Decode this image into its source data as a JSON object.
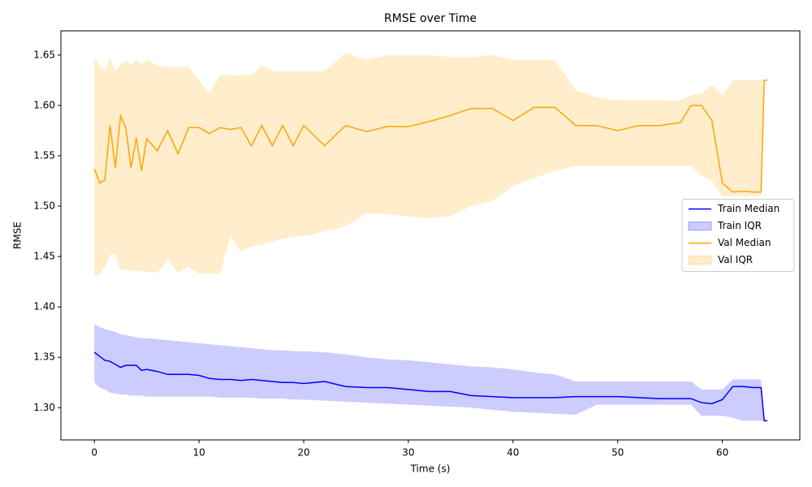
{
  "chart_data": {
    "type": "line",
    "title": "RMSE over Time",
    "x_label": "Time (s)",
    "y_label": "RMSE",
    "x": [
      0,
      0.5,
      1,
      1.5,
      2,
      2.5,
      3,
      3.5,
      4,
      4.5,
      5,
      6,
      7,
      8,
      9,
      10,
      11,
      12,
      13,
      14,
      15,
      16,
      17,
      18,
      19,
      20,
      22,
      24,
      26,
      28,
      30,
      32,
      34,
      36,
      38,
      40,
      42,
      44,
      46,
      48,
      50,
      52,
      54,
      56,
      57,
      58,
      59,
      60,
      61,
      62,
      63,
      63.7,
      64,
      64.3
    ],
    "series": [
      {
        "name": "Train Median",
        "color": "#0000ff",
        "values": [
          1.355,
          1.351,
          1.347,
          1.346,
          1.343,
          1.34,
          1.342,
          1.342,
          1.342,
          1.337,
          1.338,
          1.336,
          1.333,
          1.333,
          1.333,
          1.332,
          1.329,
          1.328,
          1.328,
          1.327,
          1.328,
          1.327,
          1.326,
          1.325,
          1.325,
          1.324,
          1.326,
          1.321,
          1.32,
          1.32,
          1.318,
          1.316,
          1.316,
          1.312,
          1.311,
          1.31,
          1.31,
          1.31,
          1.311,
          1.311,
          1.311,
          1.31,
          1.309,
          1.309,
          1.309,
          1.305,
          1.304,
          1.308,
          1.321,
          1.321,
          1.32,
          1.32,
          1.287,
          1.287
        ]
      },
      {
        "name": "Train IQR",
        "color": "#0000ff",
        "low": [
          1.325,
          1.32,
          1.318,
          1.315,
          1.314,
          1.313,
          1.313,
          1.312,
          1.312,
          1.312,
          1.311,
          1.311,
          1.311,
          1.311,
          1.311,
          1.311,
          1.311,
          1.31,
          1.31,
          1.31,
          1.31,
          1.309,
          1.309,
          1.309,
          1.308,
          1.308,
          1.307,
          1.306,
          1.305,
          1.304,
          1.303,
          1.302,
          1.301,
          1.3,
          1.298,
          1.296,
          1.295,
          1.294,
          1.293,
          1.303,
          1.303,
          1.303,
          1.303,
          1.303,
          1.303,
          1.292,
          1.292,
          1.292,
          1.29,
          1.287,
          1.287,
          1.287,
          1.287,
          1.287
        ],
        "high": [
          1.383,
          1.38,
          1.378,
          1.377,
          1.375,
          1.373,
          1.372,
          1.371,
          1.37,
          1.369,
          1.369,
          1.368,
          1.367,
          1.366,
          1.365,
          1.364,
          1.363,
          1.362,
          1.361,
          1.36,
          1.359,
          1.358,
          1.357,
          1.357,
          1.356,
          1.356,
          1.355,
          1.353,
          1.35,
          1.348,
          1.347,
          1.345,
          1.343,
          1.341,
          1.34,
          1.338,
          1.335,
          1.333,
          1.326,
          1.326,
          1.326,
          1.326,
          1.326,
          1.326,
          1.326,
          1.318,
          1.318,
          1.318,
          1.328,
          1.328,
          1.328,
          1.328,
          1.287,
          1.287
        ]
      },
      {
        "name": "Val Median",
        "color": "#ffa500",
        "values": [
          1.537,
          1.523,
          1.526,
          1.58,
          1.538,
          1.59,
          1.578,
          1.538,
          1.568,
          1.535,
          1.567,
          1.555,
          1.575,
          1.552,
          1.578,
          1.578,
          1.572,
          1.578,
          1.576,
          1.578,
          1.56,
          1.58,
          1.56,
          1.58,
          1.56,
          1.58,
          1.56,
          1.58,
          1.574,
          1.579,
          1.579,
          1.584,
          1.59,
          1.597,
          1.597,
          1.585,
          1.598,
          1.598,
          1.58,
          1.58,
          1.575,
          1.58,
          1.58,
          1.583,
          1.6,
          1.6,
          1.585,
          1.523,
          1.514,
          1.515,
          1.514,
          1.514,
          1.625,
          1.625
        ]
      },
      {
        "name": "Val IQR",
        "color": "#ffa500",
        "low": [
          1.43,
          1.432,
          1.44,
          1.452,
          1.452,
          1.437,
          1.437,
          1.436,
          1.436,
          1.435,
          1.435,
          1.434,
          1.446,
          1.434,
          1.44,
          1.433,
          1.433,
          1.433,
          1.47,
          1.455,
          1.46,
          1.462,
          1.465,
          1.468,
          1.47,
          1.47,
          1.475,
          1.48,
          1.493,
          1.492,
          1.49,
          1.488,
          1.49,
          1.5,
          1.505,
          1.52,
          1.528,
          1.535,
          1.54,
          1.54,
          1.54,
          1.54,
          1.54,
          1.54,
          1.54,
          1.53,
          1.525,
          1.51,
          1.51,
          1.51,
          1.51,
          1.51,
          1.625,
          1.625
        ],
        "high": [
          1.648,
          1.64,
          1.635,
          1.647,
          1.635,
          1.64,
          1.645,
          1.64,
          1.645,
          1.64,
          1.645,
          1.64,
          1.638,
          1.638,
          1.638,
          1.625,
          1.612,
          1.63,
          1.63,
          1.63,
          1.63,
          1.64,
          1.634,
          1.634,
          1.634,
          1.634,
          1.634,
          1.652,
          1.645,
          1.65,
          1.65,
          1.65,
          1.648,
          1.648,
          1.65,
          1.645,
          1.645,
          1.645,
          1.615,
          1.608,
          1.605,
          1.605,
          1.605,
          1.605,
          1.61,
          1.612,
          1.62,
          1.61,
          1.625,
          1.625,
          1.625,
          1.625,
          1.625,
          1.625
        ]
      }
    ],
    "xlim": [
      -3.2,
      67.4
    ],
    "ylim": [
      1.268,
      1.674
    ],
    "xticks": [
      0,
      10,
      20,
      30,
      40,
      50,
      60
    ],
    "yticks": [
      {
        "value": 1.3,
        "label": "1.30"
      },
      1.35,
      {
        "value": 1.4,
        "label": "1.40"
      },
      1.45,
      {
        "value": 1.5,
        "label": "1.50"
      },
      1.55,
      {
        "value": 1.6,
        "label": "1.60"
      },
      1.65
    ],
    "legend": "center right"
  }
}
